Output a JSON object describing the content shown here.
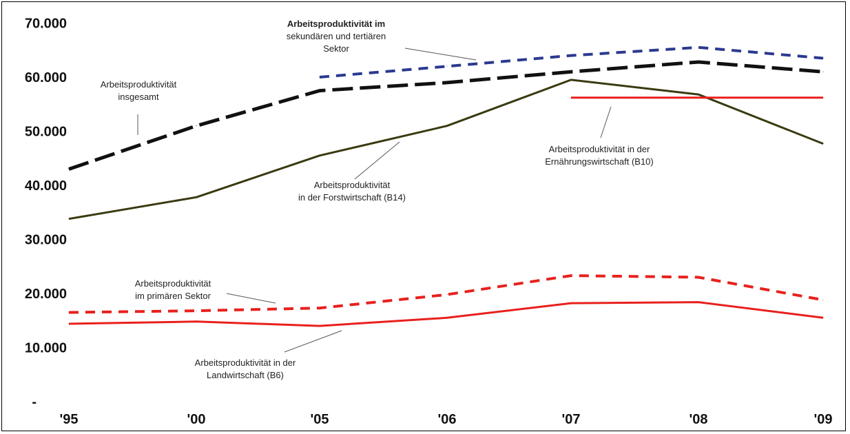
{
  "chart_data": {
    "type": "line",
    "categories": [
      "'95",
      "'00",
      "'05",
      "'06",
      "'07",
      "'08",
      "'09"
    ],
    "ylim": [
      0,
      70000
    ],
    "y_ticks": [
      "-",
      "10.000",
      "20.000",
      "30.000",
      "40.000",
      "50.000",
      "60.000",
      "70.000"
    ],
    "grid": false,
    "legend": "none",
    "series": [
      {
        "key": "sec_tert",
        "values": [
          null,
          null,
          60000,
          62000,
          64000,
          65500,
          63500
        ],
        "color": "#2b3990",
        "style": "dashed"
      },
      {
        "key": "gesamt",
        "values": [
          43000,
          51000,
          57500,
          59000,
          61000,
          62800,
          61000
        ],
        "color": "#111111",
        "style": "long-dashed"
      },
      {
        "key": "forst",
        "values": [
          33800,
          37800,
          45500,
          51000,
          59500,
          56800,
          47700
        ],
        "color": "#3a3a10",
        "style": "solid"
      },
      {
        "key": "ernaehrung",
        "values": [
          null,
          null,
          null,
          null,
          56200,
          56200,
          56200
        ],
        "color": "#e8201c",
        "style": "solid"
      },
      {
        "key": "primaer",
        "values": [
          16500,
          16800,
          17300,
          19800,
          23300,
          23000,
          18800
        ],
        "color": "#e8201c",
        "style": "dashed"
      },
      {
        "key": "land",
        "values": [
          14400,
          14800,
          14000,
          15500,
          18200,
          18400,
          15500
        ],
        "color": "#e8201c",
        "style": "solid"
      }
    ],
    "annotations": [
      {
        "key": "sec_tert",
        "lines": [
          "Arbeitsproduktivität im",
          "sekundären und tertiären",
          "Sektor"
        ],
        "bold_first": true
      },
      {
        "key": "gesamt",
        "lines": [
          "Arbeitsproduktivität",
          "insgesamt"
        ],
        "bold_first": false
      },
      {
        "key": "forst",
        "lines": [
          "Arbeitsproduktivität",
          "in der Forstwirtschaft (B14)"
        ],
        "bold_first": false
      },
      {
        "key": "ernaehrung",
        "lines": [
          "Arbeitsproduktivität in der",
          "Ernährungswirtschaft (B10)"
        ],
        "bold_first": false
      },
      {
        "key": "primaer",
        "lines": [
          "Arbeitsproduktivität",
          "im primären Sektor"
        ],
        "bold_first": false
      },
      {
        "key": "land",
        "lines": [
          "Arbeitsproduktivität in der",
          "Landwirtschaft (B6)"
        ],
        "bold_first": false
      }
    ]
  }
}
